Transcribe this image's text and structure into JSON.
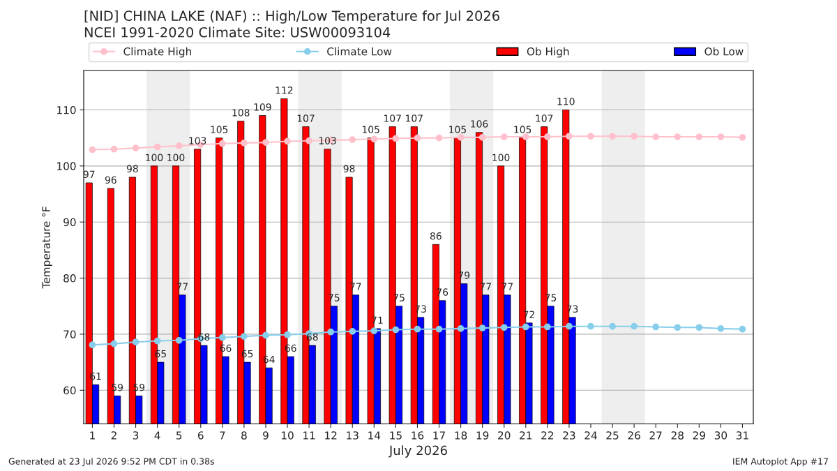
{
  "chart_data": {
    "type": "bar",
    "title": "[NID] CHINA LAKE (NAF) :: High/Low Temperature for Jul 2026",
    "subtitle": "NCEI 1991-2020 Climate Site: USW00093104",
    "xlabel": "July 2026",
    "ylabel": "Temperature °F",
    "x": [
      1,
      2,
      3,
      4,
      5,
      6,
      7,
      8,
      9,
      10,
      11,
      12,
      13,
      14,
      15,
      16,
      17,
      18,
      19,
      20,
      21,
      22,
      23,
      24,
      25,
      26,
      27,
      28,
      29,
      30,
      31
    ],
    "series": [
      {
        "name": "Climate High",
        "type": "line",
        "color": "#ffc0cb",
        "marker": "circle",
        "values": [
          102.9,
          103.0,
          103.2,
          103.4,
          103.6,
          103.8,
          104.0,
          104.1,
          104.2,
          104.4,
          104.5,
          104.6,
          104.7,
          104.8,
          104.9,
          105.0,
          105.0,
          105.1,
          105.1,
          105.2,
          105.2,
          105.2,
          105.3,
          105.3,
          105.3,
          105.3,
          105.2,
          105.2,
          105.2,
          105.2,
          105.1
        ]
      },
      {
        "name": "Climate Low",
        "type": "line",
        "color": "#87ceeb",
        "marker": "circle",
        "values": [
          68.1,
          68.3,
          68.6,
          68.8,
          68.9,
          69.2,
          69.4,
          69.6,
          69.8,
          69.9,
          70.1,
          70.4,
          70.5,
          70.6,
          70.8,
          70.9,
          70.9,
          71.0,
          71.1,
          71.2,
          71.3,
          71.3,
          71.4,
          71.4,
          71.4,
          71.4,
          71.3,
          71.2,
          71.2,
          71.0,
          70.9
        ]
      },
      {
        "name": "Ob High",
        "type": "bar",
        "color": "#ff0000",
        "data_labels": true,
        "values": [
          97,
          96,
          98,
          100,
          100,
          103,
          105,
          108,
          109,
          112,
          107,
          103,
          98,
          105,
          107,
          107,
          86,
          105,
          106,
          100,
          105,
          107,
          110,
          null,
          null,
          null,
          null,
          null,
          null,
          null,
          null
        ]
      },
      {
        "name": "Ob Low",
        "type": "bar",
        "color": "#0000ff",
        "data_labels": true,
        "values": [
          61,
          59,
          59,
          65,
          77,
          68,
          66,
          65,
          64,
          66,
          68,
          75,
          77,
          71,
          75,
          73,
          76,
          79,
          77,
          77,
          72,
          75,
          73,
          null,
          null,
          null,
          null,
          null,
          null,
          null,
          null
        ]
      }
    ],
    "bands": [
      {
        "axis": "x",
        "from": 3.5,
        "to": 5.5,
        "color": "#eeeeee"
      },
      {
        "axis": "x",
        "from": 10.5,
        "to": 12.5,
        "color": "#eeeeee"
      },
      {
        "axis": "x",
        "from": 17.5,
        "to": 19.5,
        "color": "#eeeeee"
      },
      {
        "axis": "x",
        "from": 24.5,
        "to": 26.5,
        "color": "#eeeeee"
      }
    ],
    "xlim": [
      0.6,
      31.5
    ],
    "xticks": [
      1,
      2,
      3,
      4,
      5,
      6,
      7,
      8,
      9,
      10,
      11,
      12,
      13,
      14,
      15,
      16,
      17,
      18,
      19,
      20,
      21,
      22,
      23,
      24,
      25,
      26,
      27,
      28,
      29,
      30,
      31
    ],
    "ylim": [
      54,
      117
    ],
    "yticks": [
      60,
      70,
      80,
      90,
      100,
      110
    ],
    "grid": "y",
    "legend": "top",
    "annotations": [
      "Generated at 23 Jul 2026 9:52 PM CDT in 0.38s",
      "IEM Autoplot App #17"
    ]
  }
}
